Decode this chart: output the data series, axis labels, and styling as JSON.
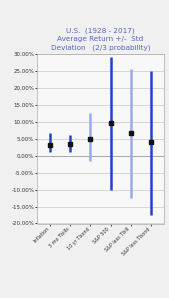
{
  "title_line1": "U.S.  (1928 - 2017)",
  "title_line2": "Average Return +/-  Std",
  "title_line3": "Deviation   (2/3 probability)",
  "title_color": "#5566bb",
  "categories": [
    "Inflation",
    "3 mo Tbills",
    "10 yr Tbond",
    "S&P 500",
    "S&P less Tbill",
    "S&P less Tbond"
  ],
  "means": [
    3.0,
    3.5,
    5.0,
    9.5,
    6.5,
    4.0
  ],
  "lower": [
    1.0,
    1.0,
    -1.5,
    -10.0,
    -12.5,
    -17.5
  ],
  "upper": [
    6.5,
    6.0,
    12.5,
    29.0,
    25.5,
    25.0
  ],
  "bar_colors": [
    "#2244cc",
    "#2244cc",
    "#99aaee",
    "#2244cc",
    "#99aaee",
    "#2244cc"
  ],
  "marker_color": "#111111",
  "ylim": [
    -20,
    30
  ],
  "yticks": [
    -20,
    -15,
    -10,
    -5,
    0,
    5,
    10,
    15,
    20,
    25,
    30
  ],
  "ytick_labels": [
    "-20.00%",
    "-15.00%",
    "-10.00%",
    "-5.00%",
    "0.00%",
    "5.00%",
    "10.00%",
    "15.00%",
    "20.00%",
    "25.00%",
    "30.00%"
  ],
  "background_color": "#f0f0f0",
  "plot_bg_color": "#f8f8f8",
  "grid_color": "#bbbbbb"
}
